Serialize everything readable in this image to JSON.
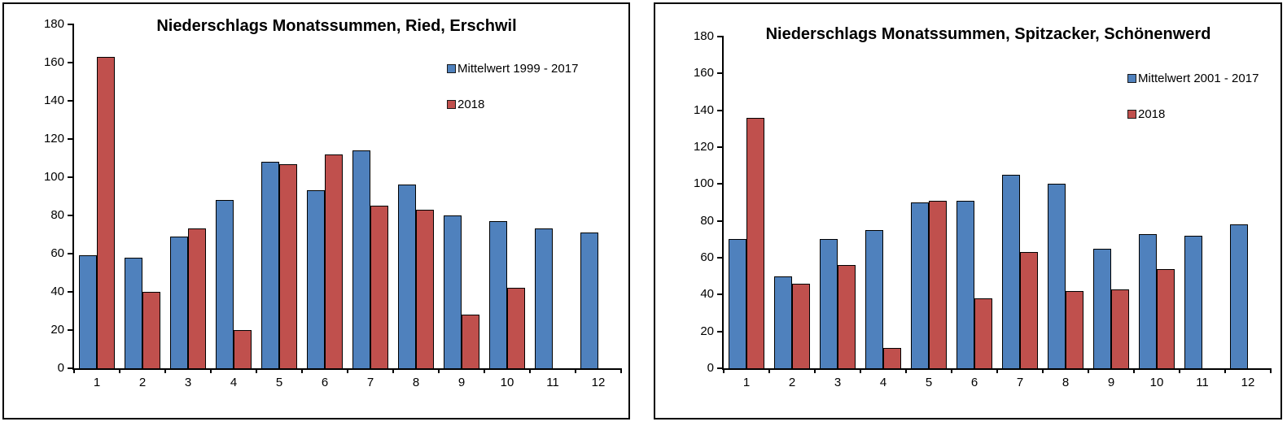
{
  "page": {
    "background": "#ffffff"
  },
  "colors": {
    "series_blue": "#4F81BD",
    "series_red": "#C0504D",
    "axis": "#000000",
    "panel_border": "#000000"
  },
  "chart_data": [
    {
      "type": "bar",
      "title": "Niederschlags Monatssummen, Ried, Erschwil",
      "categories": [
        "1",
        "2",
        "3",
        "4",
        "5",
        "6",
        "7",
        "8",
        "9",
        "10",
        "11",
        "12"
      ],
      "series": [
        {
          "name": "Mittelwert 1999 - 2017",
          "color": "#4F81BD",
          "values": [
            59,
            58,
            69,
            88,
            108,
            93,
            114,
            96,
            80,
            77,
            73,
            71
          ]
        },
        {
          "name": "2018",
          "color": "#C0504D",
          "values": [
            163,
            40,
            73,
            20,
            107,
            112,
            85,
            83,
            28,
            42,
            null,
            null
          ]
        }
      ],
      "xlabel": "",
      "ylabel": "",
      "ylim": [
        0,
        180
      ],
      "ytick_step": 20,
      "grid": false,
      "legend_position": "upper-right"
    },
    {
      "type": "bar",
      "title": "Niederschlags Monatssummen, Spitzacker, Schönenwerd",
      "categories": [
        "1",
        "2",
        "3",
        "4",
        "5",
        "6",
        "7",
        "8",
        "9",
        "10",
        "11",
        "12"
      ],
      "series": [
        {
          "name": "Mittelwert 2001 - 2017",
          "color": "#4F81BD",
          "values": [
            70,
            50,
            70,
            75,
            90,
            91,
            105,
            100,
            65,
            73,
            72,
            78
          ]
        },
        {
          "name": "2018",
          "color": "#C0504D",
          "values": [
            136,
            46,
            56,
            11,
            91,
            38,
            63,
            42,
            43,
            54,
            null,
            null
          ]
        }
      ],
      "xlabel": "",
      "ylabel": "",
      "ylim": [
        0,
        180
      ],
      "ytick_step": 20,
      "grid": false,
      "legend_position": "upper-right"
    }
  ]
}
